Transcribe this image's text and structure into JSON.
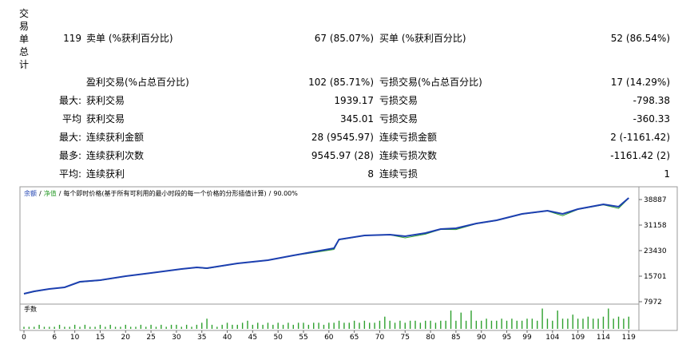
{
  "summary": {
    "label": "交易单总计",
    "rows": [
      {
        "prefix": "119",
        "left_label": "卖单 (%获利百分比)",
        "left_value": "67 (85.07%)",
        "right_label": "买单 (%获利百分比)",
        "right_value": "52 (86.54%)"
      },
      {
        "left_label": "盈利交易(%占总百分比)",
        "left_value": "102 (85.71%)",
        "right_label": "亏损交易(%占总百分比)",
        "right_value": "17 (14.29%)"
      },
      {
        "prefix": "最大:",
        "left_label": "获利交易",
        "left_value": "1939.17",
        "right_label": "亏损交易",
        "right_value": "-798.38"
      },
      {
        "prefix": "平均",
        "left_label": "获利交易",
        "left_value": "345.01",
        "right_label": "亏损交易",
        "right_value": "-360.33"
      },
      {
        "prefix": "最大:",
        "left_label": "连续获利金额",
        "left_value": "28 (9545.97)",
        "right_label": "连续亏损金额",
        "right_value": "2 (-1161.42)"
      },
      {
        "prefix": "最多:",
        "left_label": "连续获利次数",
        "left_value": "9545.97 (28)",
        "right_label": "连续亏损次数",
        "right_value": "-1161.42 (2)"
      },
      {
        "prefix": "平均:",
        "left_label": "连续获利",
        "left_value": "8",
        "right_label": "连续亏损",
        "right_value": "1"
      }
    ]
  },
  "chart_data": [
    {
      "type": "line",
      "separator": "/",
      "subtitle": "每个即时价格(基于所有可利用的最小时段的每一个价格的分形插值计算)",
      "note": "90.00%",
      "x": [
        0,
        2,
        5,
        8,
        11,
        15,
        20,
        25,
        31,
        34,
        36,
        42,
        48,
        53,
        61,
        62,
        67,
        72,
        75,
        79,
        82,
        85,
        89,
        93,
        98,
        103,
        106,
        109,
        114,
        117,
        119
      ],
      "series": [
        {
          "name": "余额",
          "color": "#1c3fb0",
          "values": [
            10387,
            11112,
            11836,
            12319,
            14010,
            14493,
            15700,
            16666,
            17874,
            18357,
            18115,
            19564,
            20530,
            21979,
            24153,
            26809,
            28017,
            28258,
            27775,
            28741,
            29949,
            30190,
            31639,
            32605,
            34537,
            35503,
            34537,
            35986,
            37435,
            36711,
            39367
          ]
        },
        {
          "name": "净值",
          "color": "#2e9e2e",
          "values": [
            10300,
            11000,
            11800,
            12250,
            13900,
            14400,
            15650,
            16600,
            17800,
            18300,
            18000,
            19500,
            20450,
            21900,
            23800,
            26700,
            27950,
            28200,
            27300,
            28400,
            29850,
            29800,
            31550,
            32500,
            34450,
            35400,
            34000,
            35900,
            37300,
            36200,
            39300
          ]
        }
      ],
      "xlim": [
        0,
        121
      ],
      "ylim": [
        7247,
        40575
      ],
      "yticks": [
        38887,
        31158,
        23430,
        15701,
        7972
      ]
    },
    {
      "type": "bar",
      "title": "手数",
      "color": "#2ea02e",
      "x": [
        0,
        1,
        2,
        3,
        4,
        5,
        6,
        7,
        8,
        9,
        10,
        11,
        12,
        13,
        14,
        15,
        16,
        17,
        18,
        19,
        20,
        21,
        22,
        23,
        24,
        25,
        26,
        27,
        28,
        29,
        30,
        31,
        32,
        33,
        34,
        35,
        36,
        37,
        38,
        39,
        40,
        41,
        42,
        43,
        44,
        45,
        46,
        47,
        48,
        49,
        50,
        51,
        52,
        53,
        54,
        55,
        56,
        57,
        58,
        59,
        60,
        61,
        62,
        63,
        64,
        65,
        66,
        67,
        68,
        69,
        70,
        71,
        72,
        73,
        74,
        75,
        76,
        77,
        78,
        79,
        80,
        81,
        82,
        83,
        84,
        85,
        86,
        87,
        88,
        89,
        90,
        91,
        92,
        93,
        94,
        95,
        96,
        97,
        98,
        99,
        100,
        101,
        102,
        103,
        104,
        105,
        106,
        107,
        108,
        109,
        110,
        111,
        112,
        113,
        114,
        115,
        116,
        117,
        118,
        119
      ],
      "values": [
        0.1,
        0.1,
        0.1,
        0.2,
        0.1,
        0.1,
        0.1,
        0.2,
        0.1,
        0.1,
        0.2,
        0.1,
        0.2,
        0.1,
        0.1,
        0.2,
        0.1,
        0.2,
        0.1,
        0.1,
        0.2,
        0.1,
        0.1,
        0.2,
        0.1,
        0.2,
        0.1,
        0.2,
        0.1,
        0.2,
        0.2,
        0.1,
        0.2,
        0.1,
        0.2,
        0.3,
        0.5,
        0.2,
        0.1,
        0.2,
        0.3,
        0.2,
        0.2,
        0.3,
        0.4,
        0.2,
        0.3,
        0.2,
        0.3,
        0.2,
        0.3,
        0.2,
        0.3,
        0.2,
        0.3,
        0.3,
        0.2,
        0.3,
        0.3,
        0.2,
        0.3,
        0.3,
        0.4,
        0.3,
        0.3,
        0.4,
        0.3,
        0.4,
        0.3,
        0.3,
        0.4,
        0.6,
        0.4,
        0.3,
        0.4,
        0.3,
        0.4,
        0.4,
        0.3,
        0.4,
        0.4,
        0.3,
        0.4,
        0.4,
        0.9,
        0.4,
        0.8,
        0.4,
        0.9,
        0.4,
        0.4,
        0.5,
        0.4,
        0.4,
        0.5,
        0.4,
        0.5,
        0.4,
        0.4,
        0.5,
        0.5,
        0.4,
        1.0,
        0.5,
        0.4,
        0.9,
        0.5,
        0.5,
        0.7,
        0.5,
        0.5,
        0.6,
        0.5,
        0.5,
        0.6,
        1.0,
        0.5,
        0.6,
        0.5,
        0.6
      ],
      "xlim": [
        0,
        121
      ],
      "ylim": [
        0,
        1.1
      ],
      "xticks": [
        0,
        6,
        10,
        15,
        20,
        25,
        30,
        35,
        40,
        45,
        50,
        55,
        60,
        65,
        70,
        75,
        80,
        85,
        90,
        95,
        99,
        104,
        109,
        114,
        119
      ]
    }
  ]
}
